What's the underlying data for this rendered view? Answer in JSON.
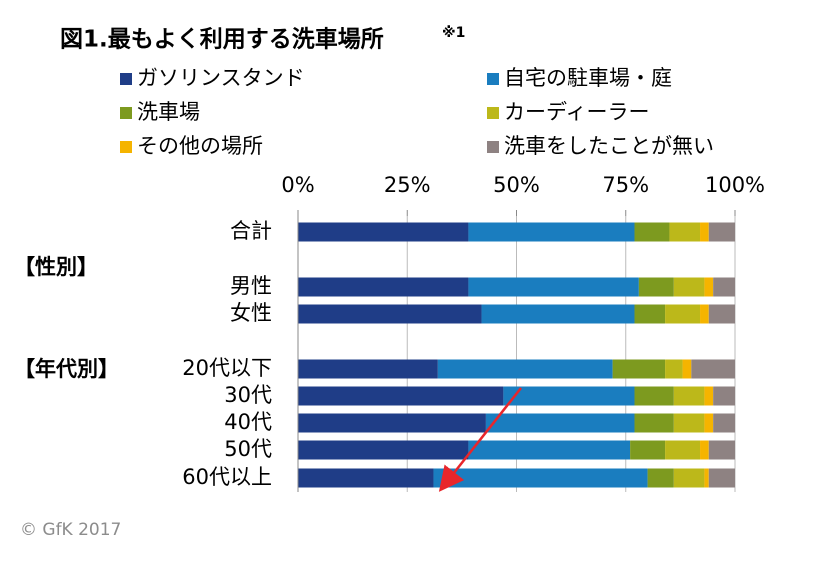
{
  "chart_data": {
    "type": "stacked_bar_horizontal",
    "title": "図1.最もよく利用する洗車場所",
    "title_note": "※1",
    "categories": [
      "合計",
      "男性",
      "女性",
      "20代以下",
      "30代",
      "40代",
      "50代",
      "60代以上"
    ],
    "group_labels": [
      "【性別】",
      "【年代別】"
    ],
    "series": [
      {
        "name": "ガソリンスタンド",
        "color": "#1f3d87",
        "values": [
          39,
          39,
          42,
          32,
          47,
          43,
          39,
          31
        ]
      },
      {
        "name": "自宅の駐車場・庭",
        "color": "#1a7dbf",
        "values": [
          38,
          39,
          35,
          40,
          30,
          34,
          37,
          49
        ]
      },
      {
        "name": "洗車場",
        "color": "#7d9a1f",
        "values": [
          8,
          8,
          7,
          12,
          9,
          9,
          8,
          6
        ]
      },
      {
        "name": "カーディーラー",
        "color": "#bcb81a",
        "values": [
          7,
          7,
          8,
          4,
          7,
          7,
          8,
          7
        ]
      },
      {
        "name": "その他の場所",
        "color": "#f5b400",
        "values": [
          2,
          2,
          2,
          2,
          2,
          2,
          2,
          1
        ]
      },
      {
        "name": "洗車をしたことが無い",
        "color": "#8e8282",
        "values": [
          6,
          5,
          6,
          10,
          5,
          5,
          6,
          6
        ]
      }
    ],
    "xlim": [
      0,
      100
    ],
    "xticks": [
      {
        "value": 0,
        "label": "0%"
      },
      {
        "value": 25,
        "label": "25%"
      },
      {
        "value": 50,
        "label": "50%"
      },
      {
        "value": 75,
        "label": "75%"
      },
      {
        "value": 100,
        "label": "100%"
      }
    ],
    "grid": true,
    "copyright": "© GfK 2017"
  }
}
